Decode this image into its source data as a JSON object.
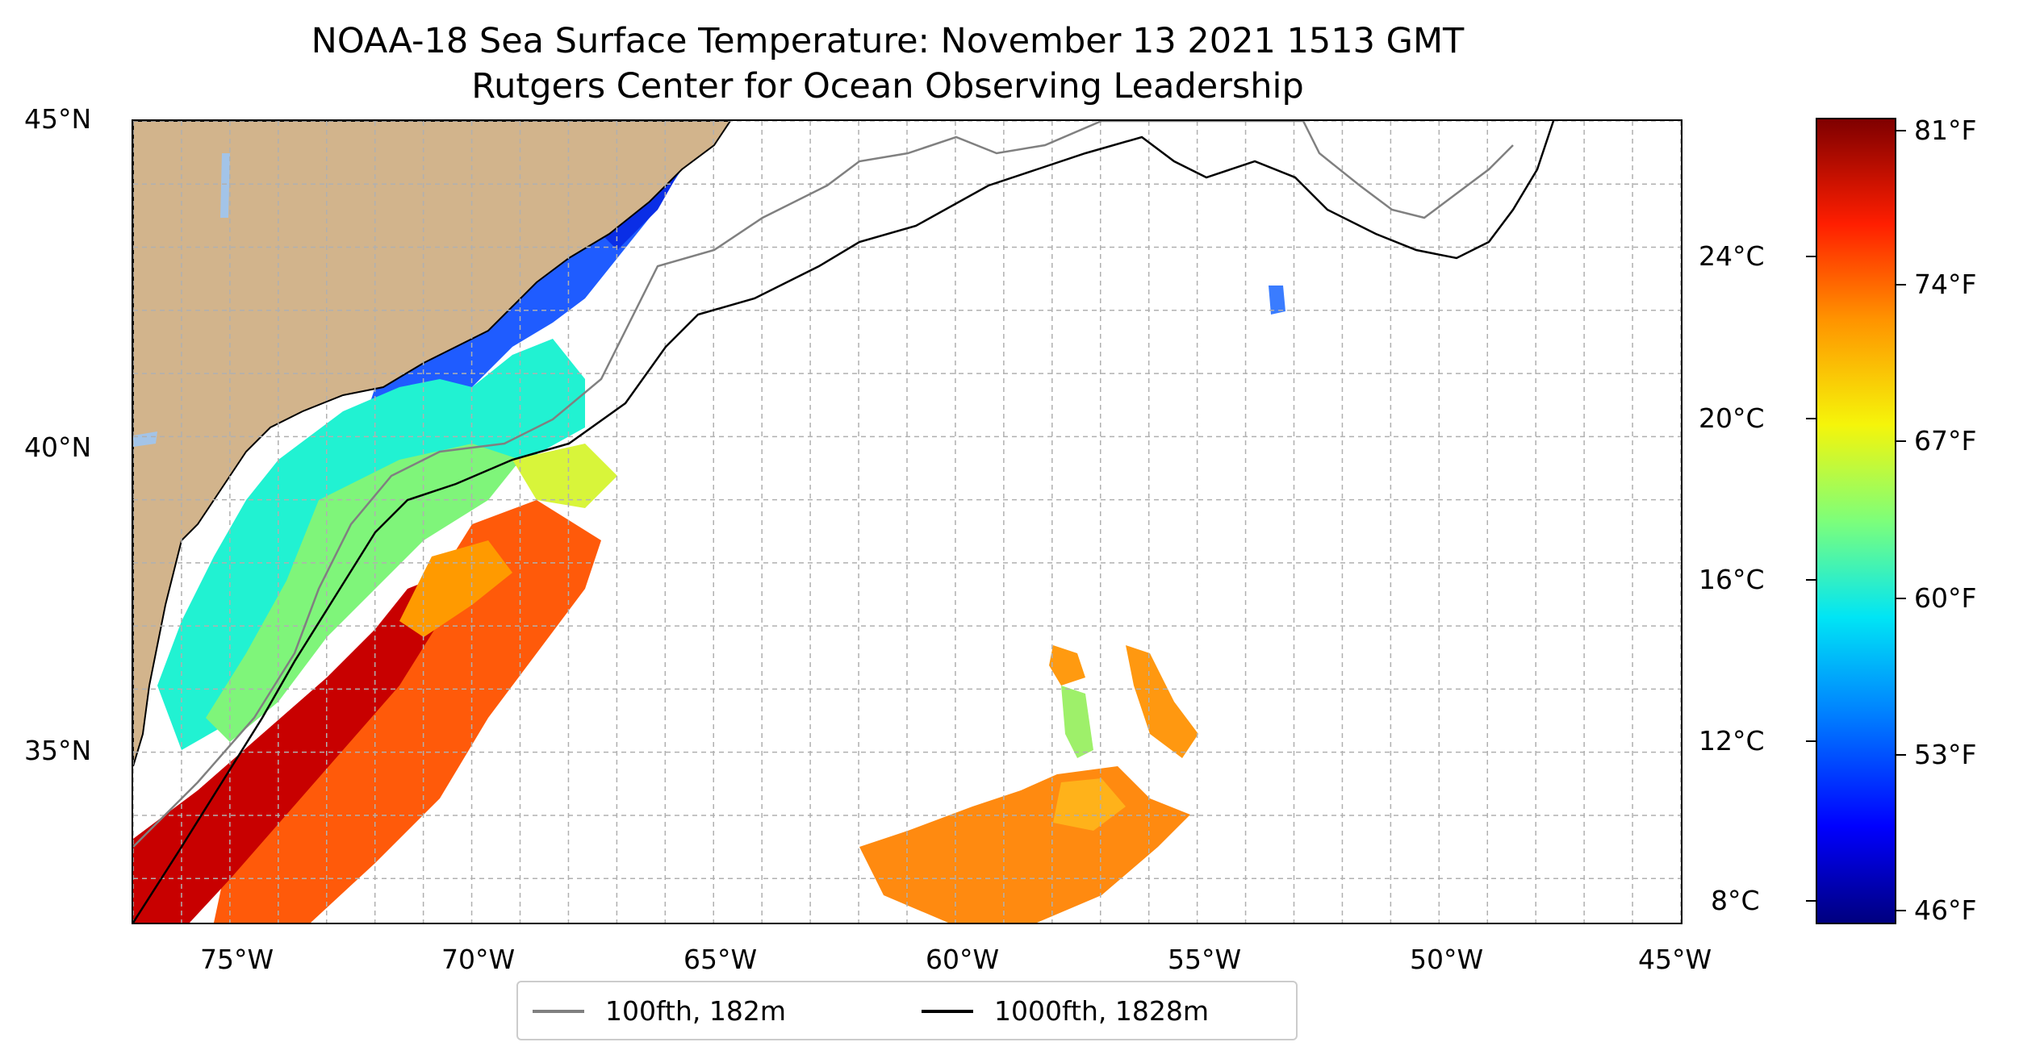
{
  "title": {
    "line1": "NOAA-18 Sea Surface Temperature: November 13 2021 1513 GMT",
    "line2": "Rutgers Center for Ocean Observing Leadership"
  },
  "map": {
    "lon_range": [
      -77,
      -45
    ],
    "lat_range": [
      32.3,
      45
    ],
    "gridlines": true,
    "land_color": "#d2b48c",
    "lake_color": "#a3c4e8",
    "lat_ticks": [
      {
        "value": 45,
        "label": "45°N"
      },
      {
        "value": 40,
        "label": "40°N"
      },
      {
        "value": 35,
        "label": "35°N"
      }
    ],
    "lon_ticks": [
      {
        "value": -75,
        "label": "75°W"
      },
      {
        "value": -70,
        "label": "70°W"
      },
      {
        "value": -65,
        "label": "65°W"
      },
      {
        "value": -60,
        "label": "60°W"
      },
      {
        "value": -55,
        "label": "55°W"
      },
      {
        "value": -50,
        "label": "50°W"
      },
      {
        "value": -45,
        "label": "45°W"
      }
    ]
  },
  "legend": {
    "placement": "bottom-center",
    "entries": [
      {
        "label": "100fth, 182m",
        "color": "#808080"
      },
      {
        "label": "1000fth, 1828m",
        "color": "#000000"
      }
    ]
  },
  "colorbar": {
    "colormap": "jet",
    "celsius_ticks": [
      {
        "value": 24,
        "label": "24°C"
      },
      {
        "value": 20,
        "label": "20°C"
      },
      {
        "value": 16,
        "label": "16°C"
      },
      {
        "value": 12,
        "label": "12°C"
      },
      {
        "value": 8,
        "label": "8°C"
      }
    ],
    "fahrenheit_ticks": [
      {
        "value": 81,
        "label": "81°F"
      },
      {
        "value": 74,
        "label": "74°F"
      },
      {
        "value": 67,
        "label": "67°F"
      },
      {
        "value": 60,
        "label": "60°F"
      },
      {
        "value": 53,
        "label": "53°F"
      },
      {
        "value": 46,
        "label": "46°F"
      }
    ]
  }
}
